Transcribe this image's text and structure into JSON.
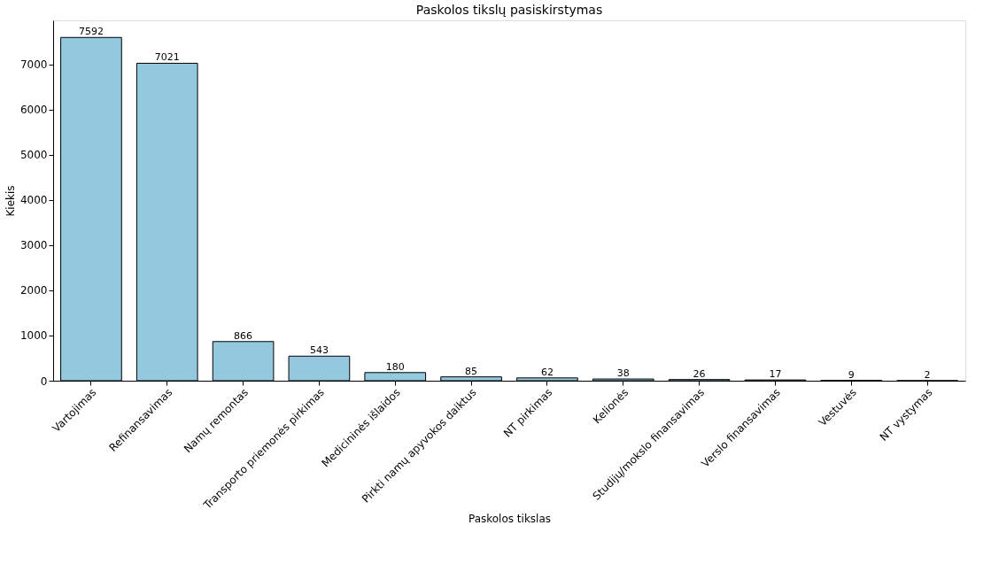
{
  "chart_data": {
    "type": "bar",
    "title": "Paskolos tikslų pasiskirstymas",
    "xlabel": "Paskolos tikslas",
    "ylabel": "Kiekis",
    "categories": [
      "Vartojimas",
      "Refinansavimas",
      "Namų remontas",
      "Transporto priemonės pirkimas",
      "Medicininės išlaidos",
      "Pirkti namų apyvokos daiktus",
      "NT pirkimas",
      "Kelionės",
      "Studijų/mokslo finansavimas",
      "Verslo finansavimas",
      "Vestuvės",
      "NT vystymas"
    ],
    "values": [
      7592,
      7021,
      866,
      543,
      180,
      85,
      62,
      38,
      26,
      17,
      9,
      2
    ],
    "color": "#93c8de",
    "ylim": [
      0,
      7970
    ],
    "yticks": [
      0,
      1000,
      2000,
      3000,
      4000,
      5000,
      6000,
      7000
    ],
    "data_labels": true
  }
}
